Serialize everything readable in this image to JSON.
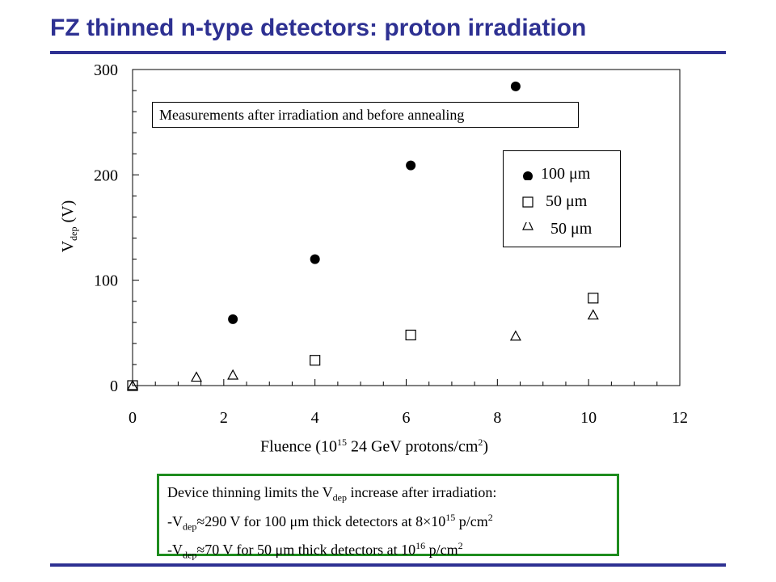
{
  "slide": {
    "title": "FZ thinned n-type detectors: proton irradiation",
    "accent_color": "#2e3192",
    "box_color": "#1e8c1e"
  },
  "chart_data": {
    "type": "scatter",
    "title": "",
    "xlabel": {
      "main": "Fluence (10",
      "sup1": "15",
      "mid": " 24 GeV protons/cm",
      "sup2": "2",
      "end": ")"
    },
    "ylabel": {
      "main": "V",
      "sub": "dep",
      "unit": " (V)"
    },
    "xlim": [
      0,
      12
    ],
    "ylim": [
      0,
      300
    ],
    "xticks": [
      0,
      2,
      4,
      6,
      8,
      10,
      12
    ],
    "yticks": [
      0,
      100,
      200,
      300
    ],
    "xtick_labels": [
      "0",
      "2",
      "4",
      "6",
      "8",
      "10",
      "12"
    ],
    "ytick_labels": [
      "0",
      "100",
      "200",
      "300"
    ],
    "grid": false,
    "legend_position": "upper-right",
    "annotation": "Measurements after irradiation and before annealing",
    "series": [
      {
        "name": "100 μm",
        "marker": "filled-circle",
        "x": [
          2.2,
          4.0,
          6.1,
          8.4
        ],
        "y": [
          63,
          120,
          209,
          284
        ]
      },
      {
        "name": "50 μm",
        "marker": "open-square",
        "x": [
          0.0,
          4.0,
          6.1,
          10.1
        ],
        "y": [
          0,
          24,
          48,
          83
        ]
      },
      {
        "name": "50 μm",
        "marker": "open-triangle",
        "x": [
          0.0,
          1.4,
          2.2,
          8.4,
          10.1
        ],
        "y": [
          0,
          8,
          10,
          47,
          67
        ]
      }
    ]
  },
  "summary_box": {
    "line1_a": "Device thinning limits the V",
    "line1_sub": "dep",
    "line1_b": " increase after irradiation:",
    "line2_a": "-V",
    "line2_sub": "dep",
    "line2_b": "≈290 V for 100 μm thick detectors at 8×10",
    "line2_sup": "15",
    "line2_c": " p/cm",
    "line2_sup2": "2",
    "line3_a": "-V",
    "line3_sub": "dep",
    "line3_b": "≈70 V for 50 μm thick detectors at 10",
    "line3_sup": "16",
    "line3_c": " p/cm",
    "line3_sup2": "2"
  }
}
